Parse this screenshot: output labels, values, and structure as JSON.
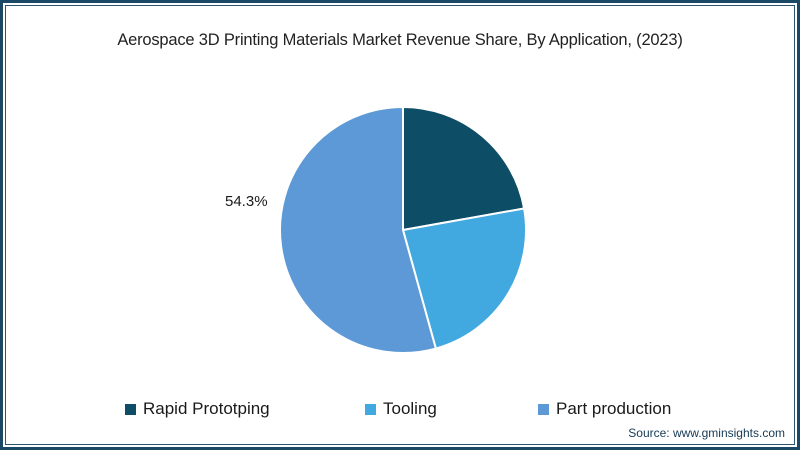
{
  "frame": {
    "border_color": "#1b4965",
    "background": "#ffffff"
  },
  "header": {
    "title": "Aerospace 3D Printing Materials Market Revenue Share, By Application, (2023)"
  },
  "chart_data": {
    "type": "pie",
    "title": "Aerospace 3D Printing Materials Market Revenue Share, By Application, (2023)",
    "direction": "clockwise",
    "start_angle_deg": 0,
    "legend_position": "bottom",
    "slices": [
      {
        "label": "Rapid Prototping",
        "value": 22.2,
        "color": "#0d4d66",
        "data_label": ""
      },
      {
        "label": "Tooling",
        "value": 23.5,
        "color": "#41a9e0",
        "data_label": ""
      },
      {
        "label": "Part production",
        "value": 54.3,
        "color": "#5c99d6",
        "data_label": "54.3%"
      }
    ],
    "visible_data_labels": [
      "54.3%"
    ]
  },
  "pie_label": {
    "text": "54.3%"
  },
  "footer": {
    "source": "Source: www.gminsights.com"
  }
}
